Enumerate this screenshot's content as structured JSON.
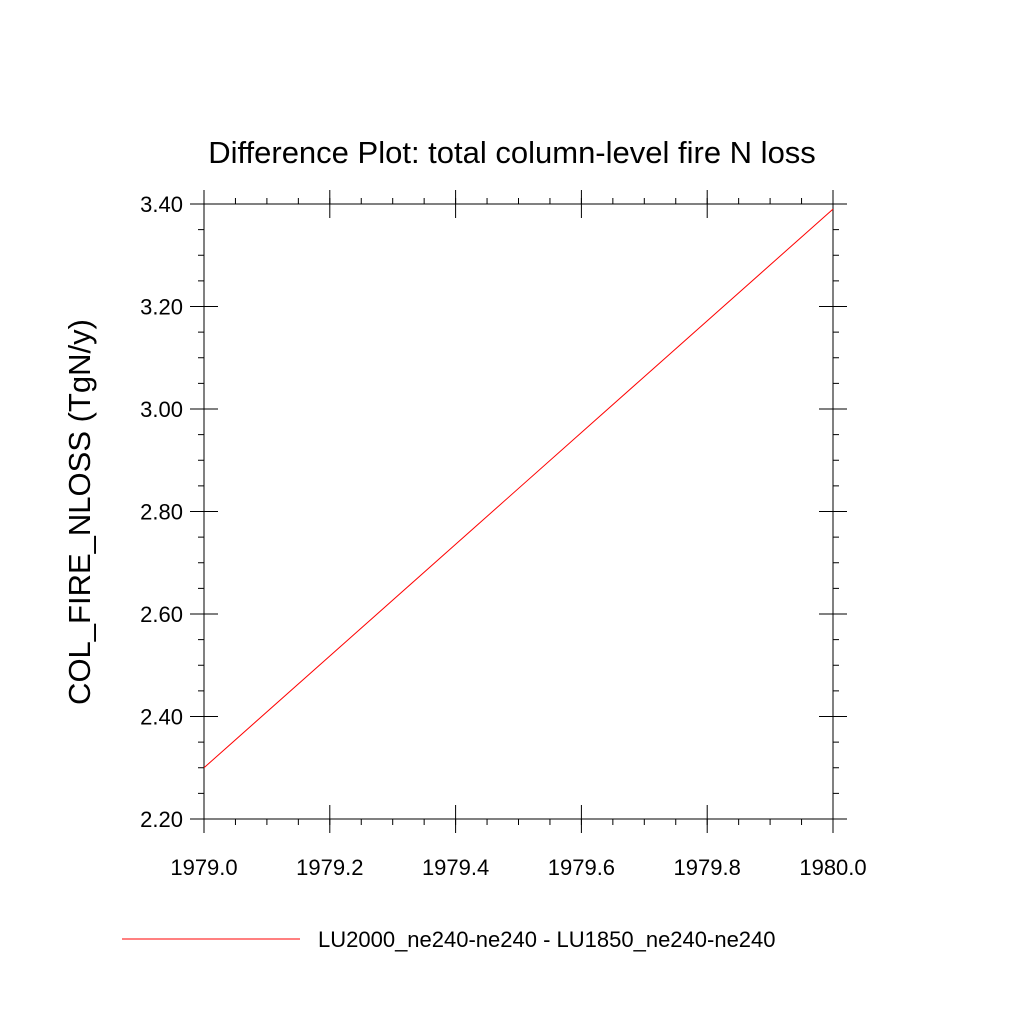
{
  "chart_data": {
    "type": "line",
    "title": "Difference Plot: total column-level fire N loss",
    "xlabel": "",
    "ylabel": "COL_FIRE_NLOSS  (TgN/y)",
    "xlim": [
      1979.0,
      1980.0
    ],
    "ylim": [
      2.2,
      3.4
    ],
    "x_ticks": [
      "1979.0",
      "1979.2",
      "1979.4",
      "1979.6",
      "1979.8",
      "1980.0"
    ],
    "y_ticks": [
      "2.20",
      "2.40",
      "2.60",
      "2.80",
      "3.00",
      "3.20",
      "3.40"
    ],
    "grid": false,
    "legend_position": "bottom",
    "series": [
      {
        "name": "LU2000_ne240-ne240 - LU1850_ne240-ne240",
        "color": "#ff0000",
        "x": [
          1979.0,
          1980.0
        ],
        "y": [
          2.3,
          3.39
        ]
      }
    ]
  }
}
